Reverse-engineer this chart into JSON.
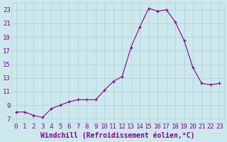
{
  "x": [
    0,
    1,
    2,
    3,
    4,
    5,
    6,
    7,
    8,
    9,
    10,
    11,
    12,
    13,
    14,
    15,
    16,
    17,
    18,
    19,
    20,
    21,
    22,
    23
  ],
  "y": [
    8.0,
    8.0,
    7.5,
    7.2,
    8.5,
    9.0,
    9.5,
    9.8,
    9.8,
    9.8,
    11.2,
    12.5,
    13.2,
    17.5,
    20.5,
    23.2,
    22.8,
    23.0,
    21.2,
    18.5,
    14.5,
    12.2,
    12.0,
    12.2
  ],
  "background_color": "#cde8ec",
  "line_color": "#880088",
  "marker_color": "#880088",
  "xlabel": "Windchill (Refroidissement éolien,°C)",
  "ylim": [
    6.5,
    24
  ],
  "xlim": [
    -0.5,
    23.5
  ],
  "yticks": [
    7,
    9,
    11,
    13,
    15,
    17,
    19,
    21,
    23
  ],
  "xticks": [
    0,
    1,
    2,
    3,
    4,
    5,
    6,
    7,
    8,
    9,
    10,
    11,
    12,
    13,
    14,
    15,
    16,
    17,
    18,
    19,
    20,
    21,
    22,
    23
  ],
  "grid_color": "#b0d8dd",
  "tick_label_color": "#880088",
  "xlabel_color": "#880088",
  "xlabel_fontsize": 7,
  "tick_fontsize": 6.5
}
